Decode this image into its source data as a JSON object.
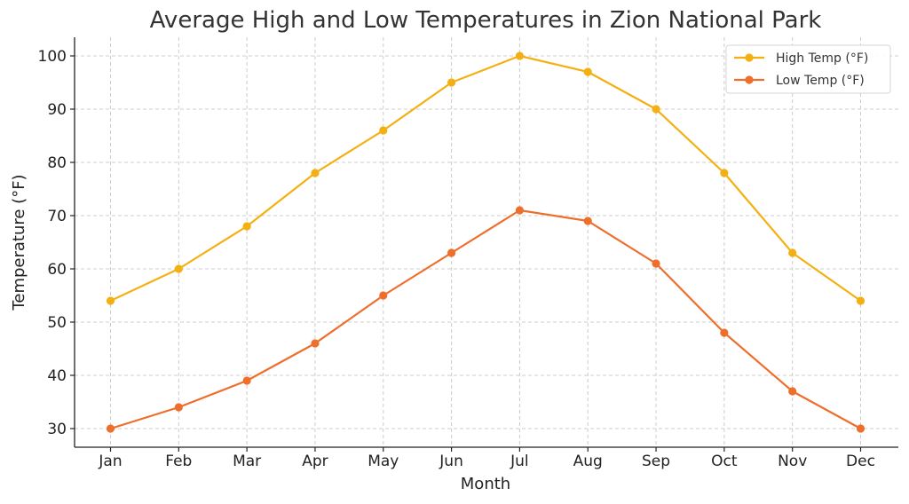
{
  "chart_data": {
    "type": "line",
    "title": "Average High and Low Temperatures in Zion National Park",
    "xlabel": "Month",
    "ylabel": "Temperature (°F)",
    "categories": [
      "Jan",
      "Feb",
      "Mar",
      "Apr",
      "May",
      "Jun",
      "Jul",
      "Aug",
      "Sep",
      "Oct",
      "Nov",
      "Dec"
    ],
    "ylim": [
      26.5,
      103.5
    ],
    "yticks": [
      30,
      40,
      50,
      60,
      70,
      80,
      90,
      100
    ],
    "grid": true,
    "legend_position": "top-right",
    "series": [
      {
        "name": "High Temp (°F)",
        "color": "#F4B012",
        "values": [
          54,
          60,
          68,
          78,
          86,
          95,
          100,
          97,
          90,
          78,
          63,
          54
        ]
      },
      {
        "name": "Low Temp (°F)",
        "color": "#EE6E2C",
        "values": [
          30,
          34,
          39,
          46,
          55,
          63,
          71,
          69,
          61,
          48,
          37,
          30
        ]
      }
    ]
  }
}
